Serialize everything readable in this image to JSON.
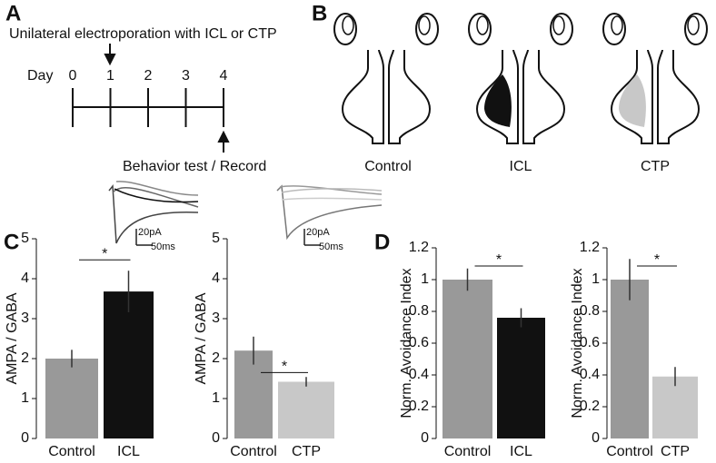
{
  "panels": {
    "a": "A",
    "b": "B",
    "c": "C",
    "d": "D"
  },
  "timeline": {
    "top_text": "Unilateral electroporation with ICL or CTP",
    "day_label": "Day",
    "days": [
      0,
      1,
      2,
      3,
      4
    ],
    "bottom_text": "Behavior test / Record"
  },
  "diagram": {
    "labels": [
      "Control",
      "ICL",
      "CTP"
    ]
  },
  "insets": [
    {
      "scale_y": "20pA",
      "scale_x": "50ms"
    },
    {
      "scale_y": "20pA",
      "scale_x": "50ms"
    }
  ],
  "chart_data": [
    {
      "type": "bar",
      "ylabel": "AMPA / GABA",
      "categories": [
        "Control",
        "ICL"
      ],
      "values": [
        2.0,
        3.68
      ],
      "errors": [
        0.22,
        0.52
      ],
      "colors": [
        "#999999",
        "#111111"
      ],
      "annotation": "*",
      "ylim": [
        0,
        5
      ],
      "yticks": [
        0,
        1,
        2,
        3,
        4,
        5
      ]
    },
    {
      "type": "bar",
      "ylabel": "AMPA / GABA",
      "categories": [
        "Control",
        "CTP"
      ],
      "values": [
        2.2,
        1.42
      ],
      "errors": [
        0.35,
        0.12
      ],
      "colors": [
        "#999999",
        "#c8c8c8"
      ],
      "annotation": "*",
      "ylim": [
        0,
        5
      ],
      "yticks": [
        0,
        1,
        2,
        3,
        4,
        5
      ]
    },
    {
      "type": "bar",
      "ylabel": "Norm. Avoidance Index",
      "categories": [
        "Control",
        "ICL"
      ],
      "values": [
        1.0,
        0.76
      ],
      "errors": [
        0.07,
        0.06
      ],
      "colors": [
        "#999999",
        "#111111"
      ],
      "annotation": "*",
      "ylim": [
        0,
        1.2
      ],
      "yticks": [
        0,
        0.2,
        0.4,
        0.6,
        0.8,
        1,
        1.2
      ]
    },
    {
      "type": "bar",
      "ylabel": "Norm. Avoidance Index",
      "categories": [
        "Control",
        "CTP"
      ],
      "values": [
        1.0,
        0.39
      ],
      "errors": [
        0.13,
        0.06
      ],
      "colors": [
        "#999999",
        "#c8c8c8"
      ],
      "annotation": "*",
      "ylim": [
        0,
        1.2
      ],
      "yticks": [
        0,
        0.2,
        0.4,
        0.6,
        0.8,
        1,
        1.2
      ]
    }
  ]
}
